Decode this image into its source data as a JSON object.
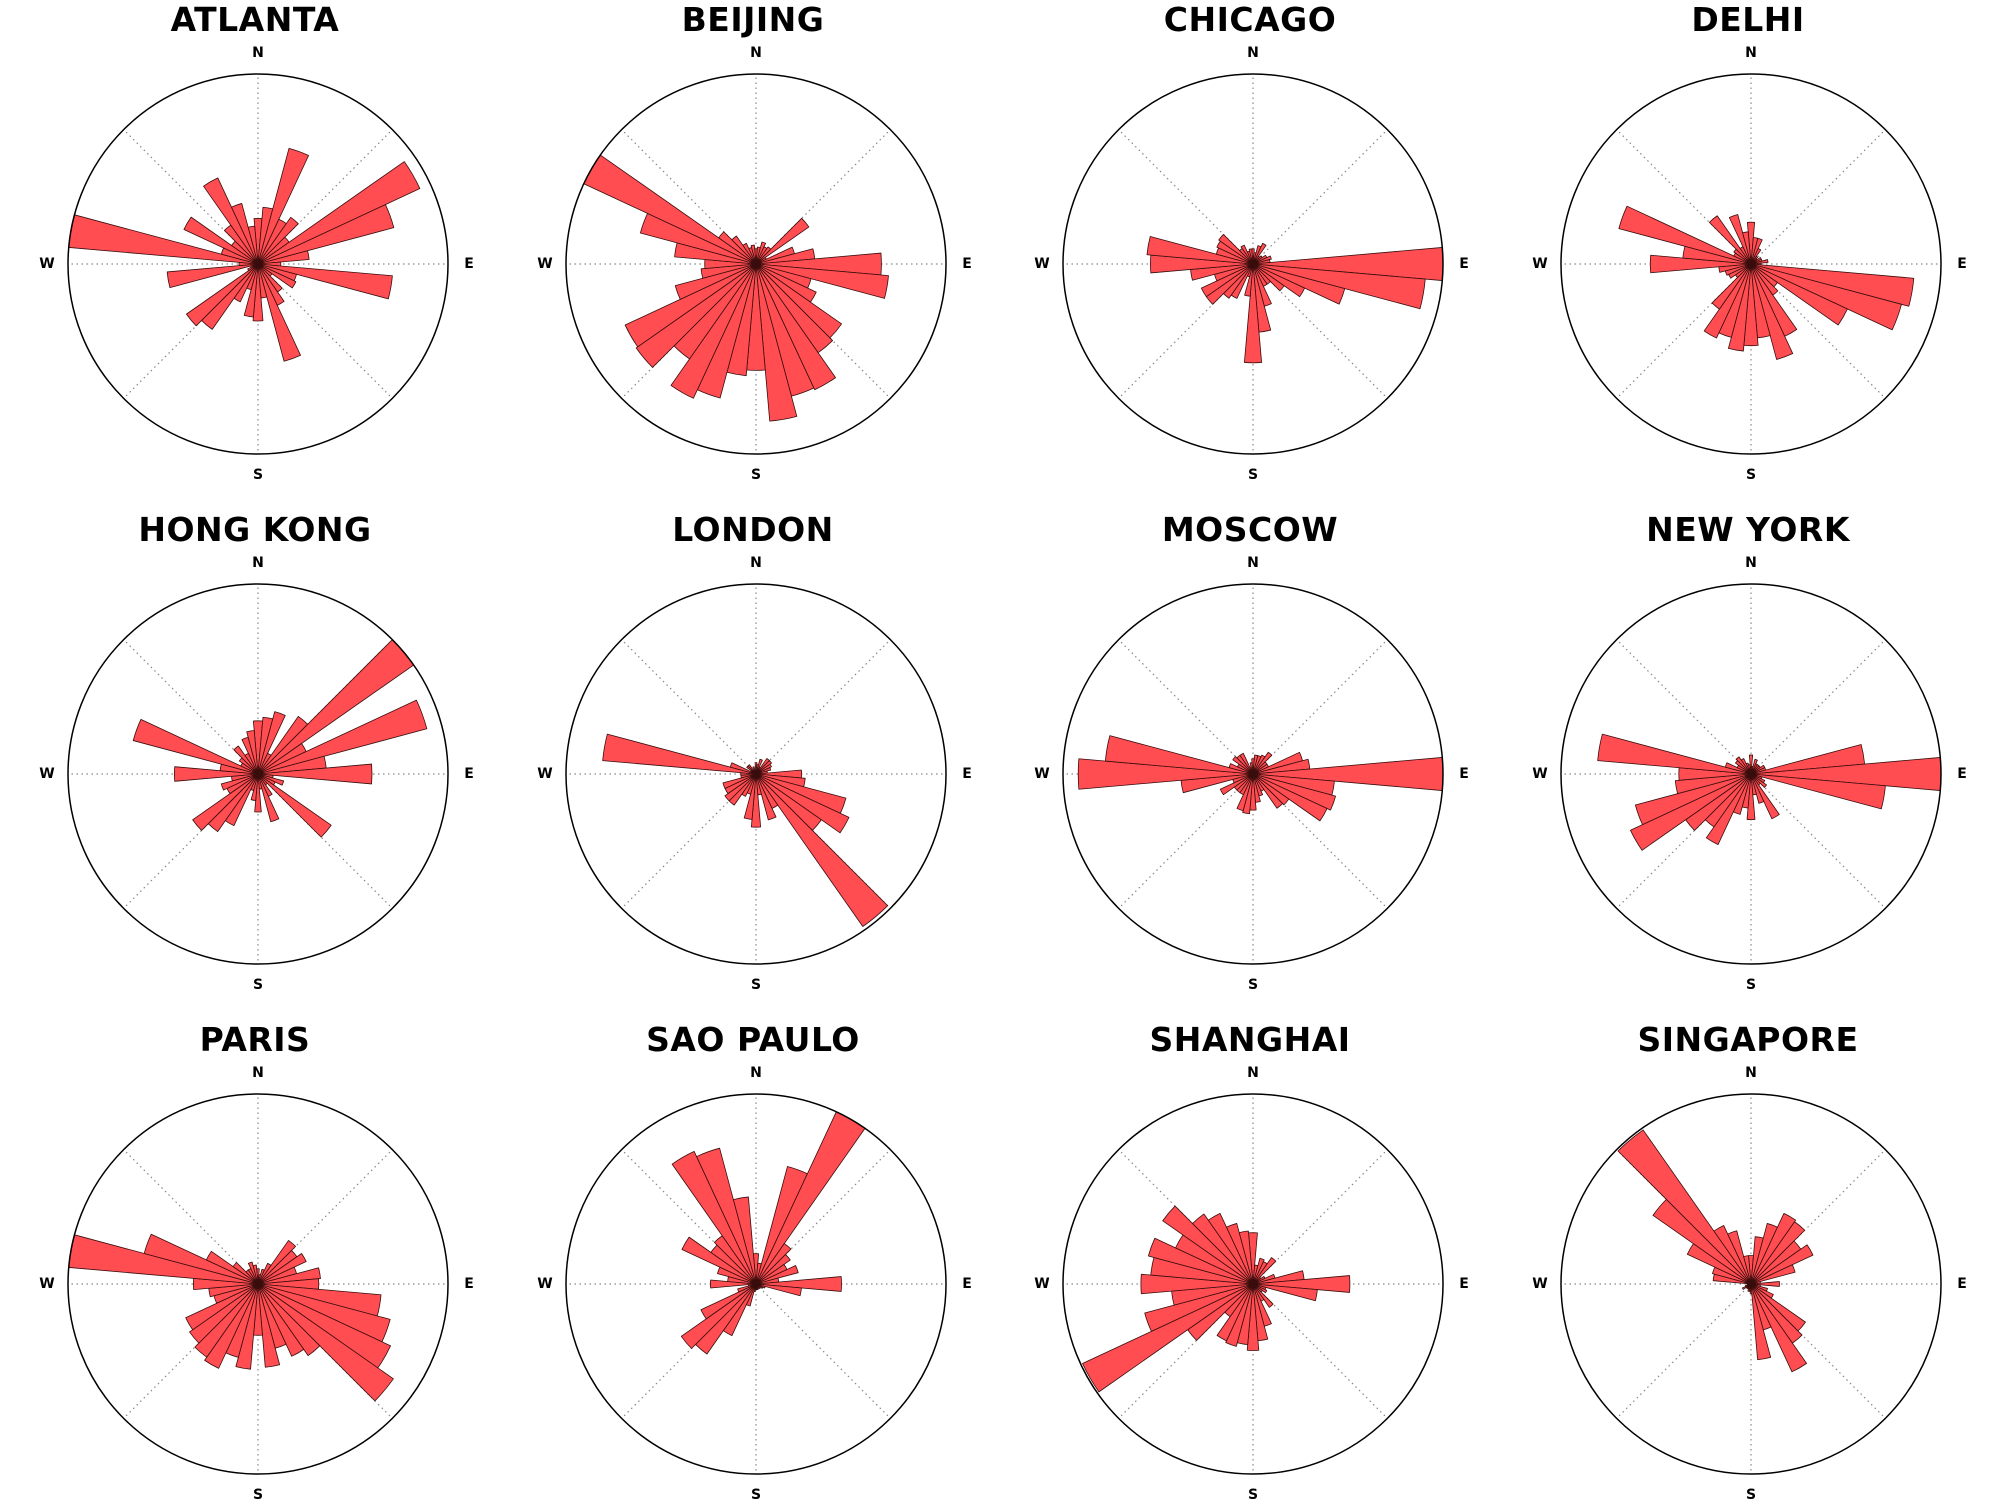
{
  "chart_data": [
    {
      "type": "polar-bar",
      "title": "ATLANTA",
      "bin_count": 36,
      "start_angle_deg": 0,
      "rmax": 1,
      "directions": [
        "N",
        "E",
        "S",
        "W"
      ],
      "values": [
        0.24,
        0.3,
        0.63,
        0.26,
        0.3,
        0.2,
        0.94,
        0.74,
        0.27,
        0.12,
        0.71,
        0.21,
        0.22,
        0.09,
        0.18,
        0.24,
        0.53,
        0.18,
        0.3,
        0.28,
        0.14,
        0.22,
        0.42,
        0.46,
        0.06,
        0.04,
        0.48,
        0.1,
        1.0,
        0.2,
        0.43,
        0.17,
        0.25,
        0.5,
        0.33,
        0.2
      ]
    },
    {
      "type": "polar-bar",
      "title": "BEIJING",
      "bin_count": 36,
      "start_angle_deg": 0,
      "rmax": 1,
      "directions": [
        "N",
        "E",
        "S",
        "W"
      ],
      "values": [
        0.08,
        0.09,
        0.12,
        0.1,
        0.11,
        0.34,
        0.06,
        0.21,
        0.31,
        0.66,
        0.7,
        0.3,
        0.35,
        0.55,
        0.57,
        0.73,
        0.72,
        0.83,
        0.56,
        0.59,
        0.73,
        0.78,
        0.61,
        0.77,
        0.76,
        0.44,
        0.29,
        0.27,
        0.43,
        0.63,
        1.0,
        0.24,
        0.18,
        0.12,
        0.09,
        0.1
      ]
    },
    {
      "type": "polar-bar",
      "title": "CHICAGO",
      "bin_count": 36,
      "start_angle_deg": 0,
      "rmax": 1,
      "directions": [
        "N",
        "E",
        "S",
        "W"
      ],
      "values": [
        0.08,
        0.06,
        0.1,
        0.12,
        0.05,
        0.06,
        0.08,
        0.1,
        0.09,
        1.0,
        0.91,
        0.5,
        0.3,
        0.2,
        0.13,
        0.13,
        0.23,
        0.36,
        0.52,
        0.17,
        0.07,
        0.2,
        0.22,
        0.3,
        0.3,
        0.21,
        0.33,
        0.54,
        0.56,
        0.2,
        0.21,
        0.22,
        0.1,
        0.11,
        0.07,
        0.08
      ]
    },
    {
      "type": "polar-bar",
      "title": "DELHI",
      "bin_count": 36,
      "start_angle_deg": 0,
      "rmax": 1,
      "directions": [
        "N",
        "E",
        "S",
        "W"
      ],
      "values": [
        0.22,
        0.14,
        0.14,
        0.09,
        0.05,
        0.04,
        0.06,
        0.06,
        0.09,
        0.05,
        0.86,
        0.82,
        0.56,
        0.17,
        0.2,
        0.42,
        0.52,
        0.39,
        0.43,
        0.46,
        0.4,
        0.43,
        0.29,
        0.1,
        0.13,
        0.14,
        0.17,
        0.53,
        0.36,
        0.72,
        0.1,
        0.11,
        0.31,
        0.1,
        0.27,
        0.17
      ]
    },
    {
      "type": "polar-bar",
      "title": "HONG KONG",
      "bin_count": 36,
      "start_angle_deg": 0,
      "rmax": 1,
      "directions": [
        "N",
        "E",
        "S",
        "W"
      ],
      "values": [
        0.28,
        0.3,
        0.34,
        0.12,
        0.37,
        1.0,
        0.28,
        0.92,
        0.36,
        0.6,
        0.08,
        0.14,
        0.1,
        0.47,
        0.07,
        0.13,
        0.26,
        0.08,
        0.2,
        0.14,
        0.09,
        0.3,
        0.37,
        0.42,
        0.18,
        0.2,
        0.14,
        0.44,
        0.2,
        0.68,
        0.1,
        0.12,
        0.18,
        0.12,
        0.2,
        0.23
      ]
    },
    {
      "type": "polar-bar",
      "title": "LONDON",
      "bin_count": 36,
      "start_angle_deg": 0,
      "rmax": 1,
      "directions": [
        "N",
        "E",
        "S",
        "W"
      ],
      "values": [
        0.06,
        0.05,
        0.08,
        0.04,
        0.1,
        0.1,
        0.09,
        0.08,
        0.06,
        0.24,
        0.26,
        0.49,
        0.54,
        0.42,
        0.98,
        0.2,
        0.25,
        0.11,
        0.28,
        0.24,
        0.11,
        0.13,
        0.2,
        0.2,
        0.18,
        0.18,
        0.08,
        0.08,
        0.81,
        0.14,
        0.03,
        0.06,
        0.06,
        0.02,
        0.04,
        0.02
      ]
    },
    {
      "type": "polar-bar",
      "title": "MOSCOW",
      "bin_count": 36,
      "start_angle_deg": 0,
      "rmax": 1,
      "directions": [
        "N",
        "E",
        "S",
        "W"
      ],
      "values": [
        0.08,
        0.1,
        0.1,
        0.11,
        0.14,
        0.09,
        0.09,
        0.27,
        0.3,
        1.0,
        0.43,
        0.45,
        0.43,
        0.23,
        0.22,
        0.1,
        0.12,
        0.15,
        0.19,
        0.21,
        0.2,
        0.12,
        0.12,
        0.12,
        0.19,
        0.11,
        0.38,
        0.92,
        0.78,
        0.13,
        0.09,
        0.13,
        0.12,
        0.12,
        0.04,
        0.06
      ]
    },
    {
      "type": "polar-bar",
      "title": "NEW YORK",
      "bin_count": 36,
      "start_angle_deg": 0,
      "rmax": 1,
      "directions": [
        "N",
        "E",
        "S",
        "W"
      ],
      "values": [
        0.1,
        0.04,
        0.08,
        0.06,
        0.06,
        0.06,
        0.08,
        0.08,
        0.6,
        1.0,
        0.71,
        0.06,
        0.08,
        0.1,
        0.07,
        0.26,
        0.16,
        0.11,
        0.24,
        0.18,
        0.22,
        0.41,
        0.34,
        0.42,
        0.7,
        0.63,
        0.4,
        0.38,
        0.81,
        0.14,
        0.08,
        0.1,
        0.11,
        0.09,
        0.06,
        0.05
      ]
    },
    {
      "type": "polar-bar",
      "title": "PARIS",
      "bin_count": 36,
      "start_angle_deg": 0,
      "rmax": 1,
      "directions": [
        "N",
        "E",
        "S",
        "W"
      ],
      "values": [
        0.08,
        0.05,
        0.08,
        0.12,
        0.28,
        0.25,
        0.28,
        0.21,
        0.33,
        0.32,
        0.65,
        0.72,
        0.77,
        0.87,
        0.46,
        0.42,
        0.35,
        0.44,
        0.27,
        0.45,
        0.4,
        0.49,
        0.47,
        0.44,
        0.42,
        0.24,
        0.26,
        0.34,
        1.0,
        0.62,
        0.3,
        0.16,
        0.09,
        0.09,
        0.12,
        0.1
      ]
    },
    {
      "type": "polar-bar",
      "title": "SAO PAULO",
      "bin_count": 36,
      "start_angle_deg": 0,
      "rmax": 1,
      "directions": [
        "N",
        "E",
        "S",
        "W"
      ],
      "values": [
        0.16,
        0.11,
        0.64,
        1.0,
        0.26,
        0.22,
        0.18,
        0.23,
        0.12,
        0.45,
        0.24,
        0.05,
        0.04,
        0.02,
        0.03,
        0.02,
        0.03,
        0.03,
        0.03,
        0.04,
        0.12,
        0.3,
        0.45,
        0.48,
        0.32,
        0.1,
        0.04,
        0.24,
        0.15,
        0.21,
        0.43,
        0.29,
        0.31,
        0.77,
        0.74,
        0.46
      ]
    },
    {
      "type": "polar-bar",
      "title": "SHANGHAI",
      "bin_count": 36,
      "start_angle_deg": 0,
      "rmax": 1,
      "directions": [
        "N",
        "E",
        "S",
        "W"
      ],
      "values": [
        0.27,
        0.1,
        0.14,
        0.13,
        0.17,
        0.05,
        0.07,
        0.12,
        0.27,
        0.51,
        0.34,
        0.07,
        0.08,
        0.06,
        0.15,
        0.1,
        0.23,
        0.3,
        0.35,
        0.32,
        0.34,
        0.33,
        0.21,
        0.42,
        0.99,
        0.59,
        0.43,
        0.59,
        0.54,
        0.57,
        0.45,
        0.58,
        0.45,
        0.41,
        0.33,
        0.28
      ]
    },
    {
      "type": "polar-bar",
      "title": "SINGAPORE",
      "bin_count": 36,
      "start_angle_deg": 0,
      "rmax": 1,
      "directions": [
        "N",
        "E",
        "S",
        "W"
      ],
      "values": [
        0.15,
        0.25,
        0.33,
        0.41,
        0.4,
        0.32,
        0.36,
        0.24,
        0.05,
        0.15,
        0.05,
        0.09,
        0.13,
        0.35,
        0.38,
        0.51,
        0.25,
        0.4,
        0.05,
        0.04,
        0.04,
        0.03,
        0.03,
        0.03,
        0.05,
        0.03,
        0.02,
        0.02,
        0.2,
        0.21,
        0.37,
        0.63,
        0.99,
        0.34,
        0.29,
        0.15
      ]
    }
  ],
  "colors": {
    "bar_fill": "#ff4d52",
    "bar_edge": "#3a0d0d",
    "axis": "#000000",
    "grid": "#888888"
  }
}
